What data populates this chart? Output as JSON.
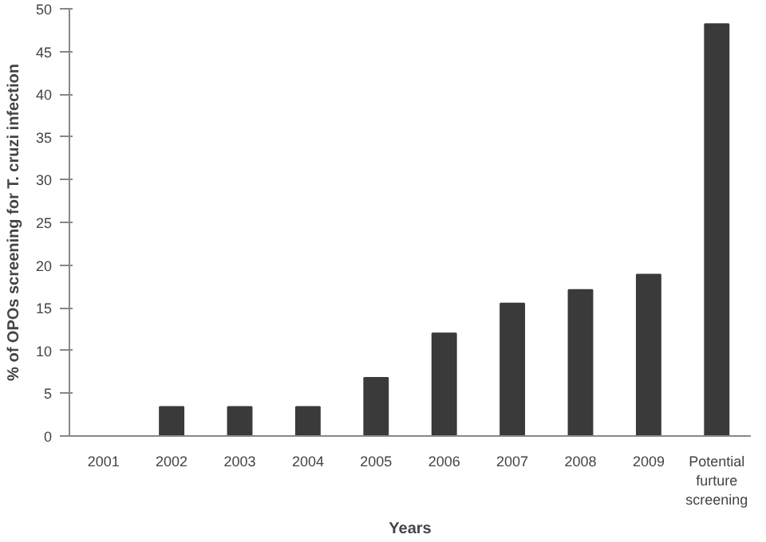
{
  "chart_data": {
    "type": "bar",
    "xlabel": "Years",
    "ylabel": "% of OPOs screening for T. cruzi infection",
    "categories": [
      "2001",
      "2002",
      "2003",
      "2004",
      "2005",
      "2006",
      "2007",
      "2008",
      "2009",
      "Potential furture screening"
    ],
    "values": [
      0,
      3.4,
      3.4,
      3.4,
      6.8,
      12.0,
      15.5,
      17.1,
      18.9,
      48.2
    ],
    "color": "#3a3a3a",
    "ylim": [
      0,
      50
    ],
    "yticks": [
      0,
      5,
      10,
      15,
      20,
      25,
      30,
      35,
      40,
      45,
      50
    ],
    "grid": false
  }
}
